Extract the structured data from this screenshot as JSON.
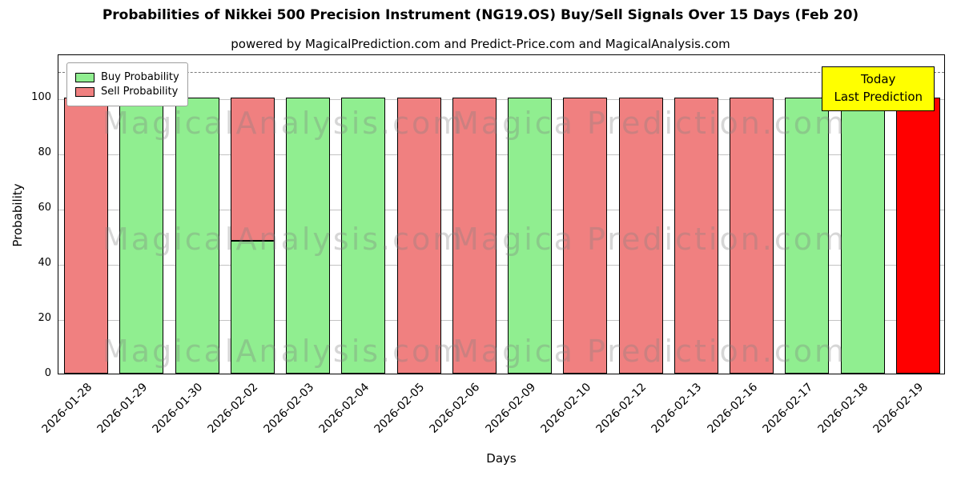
{
  "title": "Probabilities of Nikkei 500 Precision Instrument (NG19.OS) Buy/Sell Signals Over 15 Days (Feb 20)",
  "subtitle": "powered by MagicalPrediction.com and Predict-Price.com and MagicalAnalysis.com",
  "axes": {
    "xlabel": "Days",
    "ylabel": "Probability",
    "yticks": [
      0,
      20,
      40,
      60,
      80,
      100
    ]
  },
  "legend": {
    "items": [
      {
        "label": "Buy Probability",
        "color": "#90EE90"
      },
      {
        "label": "Sell Probability",
        "color": "#F08080"
      }
    ]
  },
  "annotation": {
    "line1": "Today",
    "line2": "Last Prediction",
    "bg": "#FFFF00"
  },
  "watermarks": {
    "left": "MagicalAnalysis.com",
    "right": "Magica Prediction.com"
  },
  "colors": {
    "buy": "#90EE90",
    "sell": "#F08080",
    "today": "#FF0000",
    "edge": "#000000",
    "grid": "#c3c3c3",
    "dashed_line": "#7a7a7a"
  },
  "chart_data": {
    "type": "bar",
    "stacked": true,
    "title": "Probabilities of Nikkei 500 Precision Instrument (NG19.OS) Buy/Sell Signals Over 15 Days (Feb 20)",
    "xlabel": "Days",
    "ylabel": "Probability",
    "ylim": [
      0,
      116
    ],
    "grid": "horizontal",
    "legend_position": "upper left",
    "dashed_line_y": 110,
    "categories": [
      "2026-01-28",
      "2026-01-29",
      "2026-01-30",
      "2026-02-02",
      "2026-02-03",
      "2026-02-04",
      "2026-02-05",
      "2026-02-06",
      "2026-02-09",
      "2026-02-10",
      "2026-02-12",
      "2026-02-13",
      "2026-02-16",
      "2026-02-17",
      "2026-02-18",
      "2026-02-19"
    ],
    "series": [
      {
        "name": "Buy Probability",
        "color": "#90EE90",
        "values": [
          0,
          100,
          100,
          48,
          100,
          100,
          0,
          0,
          100,
          0,
          0,
          0,
          0,
          100,
          100,
          0
        ]
      },
      {
        "name": "Sell Probability",
        "color": "#F08080",
        "values": [
          100,
          0,
          0,
          52,
          0,
          0,
          100,
          100,
          0,
          100,
          100,
          100,
          100,
          0,
          0,
          0
        ]
      }
    ],
    "today_bar": {
      "index": 15,
      "category": "2026-02-19",
      "value": 100,
      "color": "#FF0000"
    }
  }
}
